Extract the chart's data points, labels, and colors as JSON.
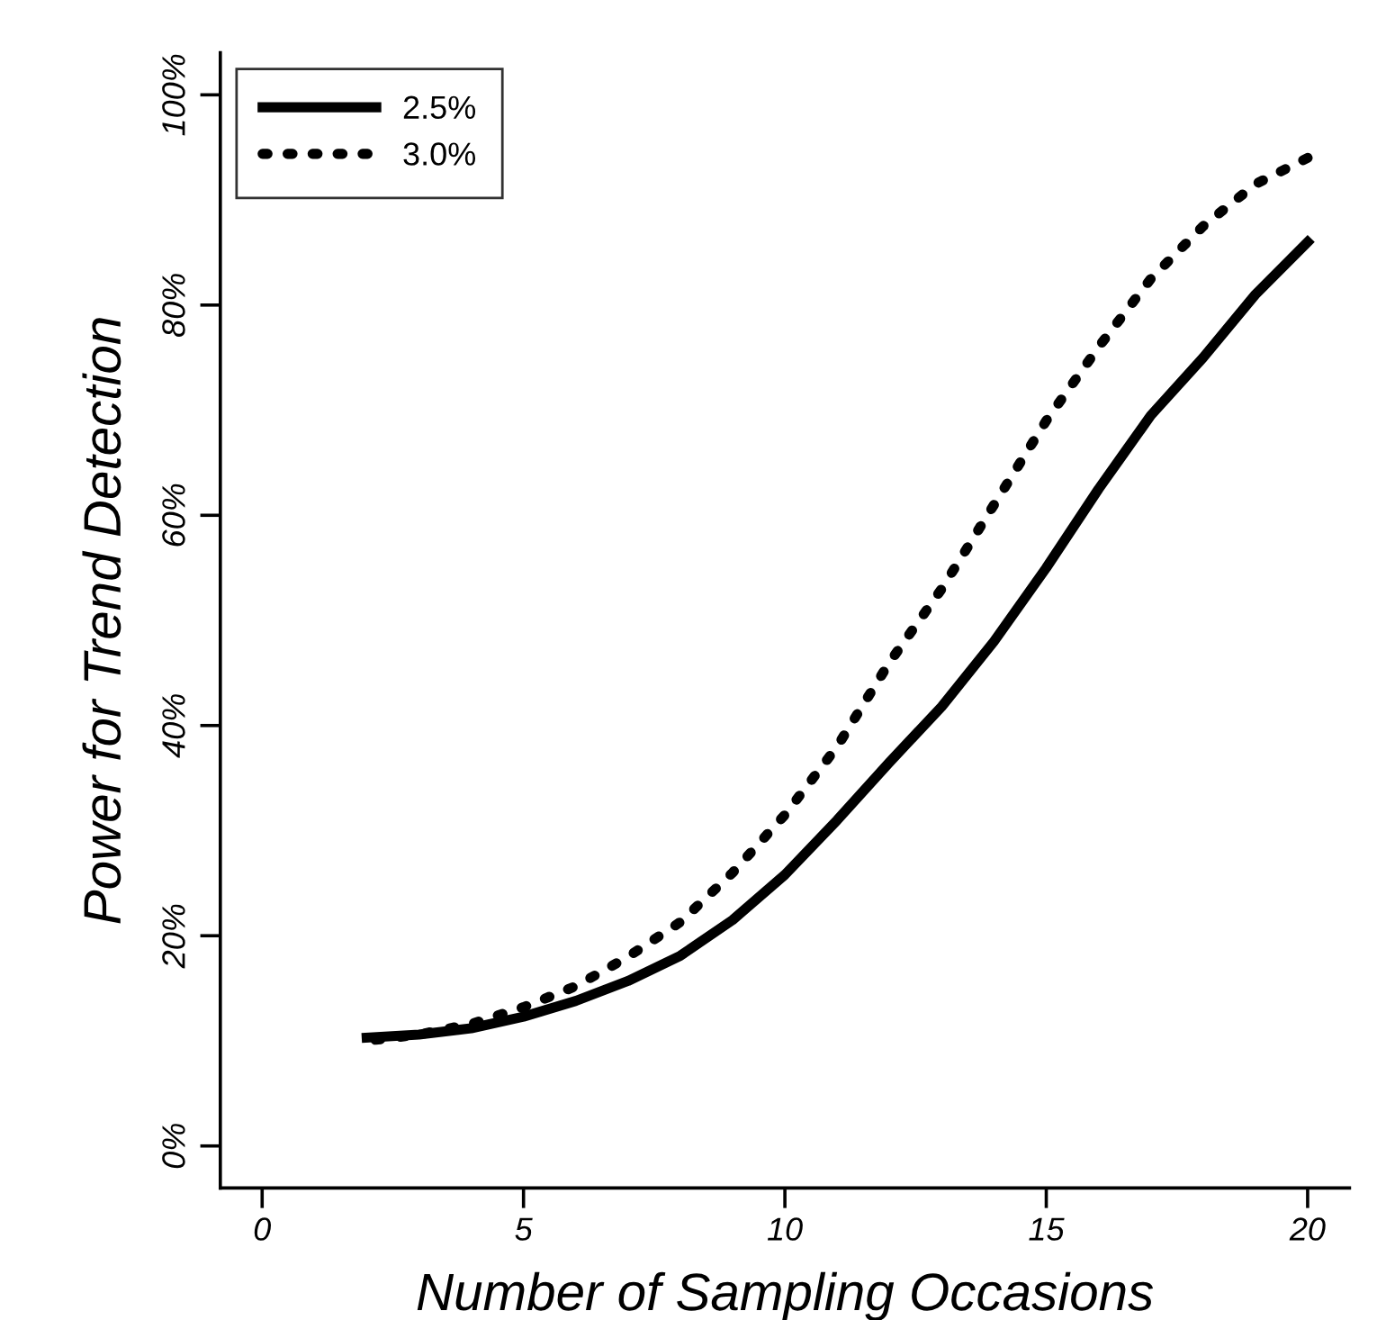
{
  "chart_data": {
    "type": "line",
    "xlabel": "Number of Sampling Occasions",
    "ylabel": "Power for Trend Detection",
    "x": [
      2,
      3,
      4,
      5,
      6,
      7,
      8,
      9,
      10,
      11,
      12,
      13,
      14,
      15,
      16,
      17,
      18,
      19,
      20
    ],
    "series": [
      {
        "name": "2.5%",
        "color": "#000000",
        "line_style": "solid",
        "values": [
          10.3,
          10.6,
          11.2,
          12.3,
          13.8,
          15.7,
          18.1,
          21.5,
          25.8,
          31,
          36.5,
          41.8,
          48,
          55,
          62.5,
          69.5,
          75,
          81,
          86
        ]
      },
      {
        "name": "3.0%",
        "color": "#000000",
        "line_style": "dotted",
        "values": [
          10,
          10.6,
          11.6,
          13.2,
          15.2,
          18,
          21.3,
          26,
          31.5,
          38,
          46,
          53,
          61,
          69,
          76,
          82.5,
          87.5,
          91.5,
          94
        ]
      }
    ],
    "xlim": [
      -0.8,
      20.8
    ],
    "ylim": [
      -4,
      104
    ],
    "xticks": [
      0,
      5,
      10,
      15,
      20
    ],
    "yticks": [
      {
        "value": 0,
        "label": "0%"
      },
      {
        "value": 20,
        "label": "20%"
      },
      {
        "value": 40,
        "label": "40%"
      },
      {
        "value": 60,
        "label": "60%"
      },
      {
        "value": 80,
        "label": "80%"
      },
      {
        "value": 100,
        "label": "100%"
      }
    ],
    "grid": false,
    "legend": "top left",
    "marker": "none"
  }
}
